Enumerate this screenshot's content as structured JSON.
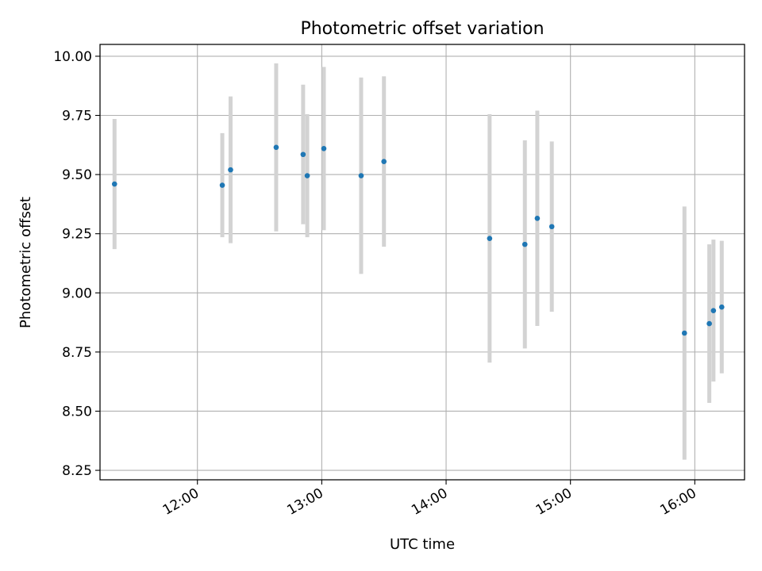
{
  "chart_data": {
    "type": "scatter",
    "title": "Photometric offset variation",
    "xlabel": "UTC time",
    "ylabel": "Photometric offset",
    "x_ticks": [
      "12:00",
      "13:00",
      "14:00",
      "15:00",
      "16:00"
    ],
    "y_ticks": [
      "8.25",
      "8.50",
      "8.75",
      "9.00",
      "9.25",
      "9.50",
      "9.75",
      "10.00"
    ],
    "xlim": [
      "11:13",
      "16:24"
    ],
    "ylim": [
      8.21,
      10.05
    ],
    "grid": true,
    "colors": {
      "marker": "#1f77b4",
      "errorbar": "#d3d3d3",
      "grid": "#b0b0b0"
    },
    "points": [
      {
        "x": "11:20",
        "y": 9.46,
        "yerr": 0.275
      },
      {
        "x": "12:12",
        "y": 9.455,
        "yerr": 0.22
      },
      {
        "x": "12:16",
        "y": 9.52,
        "yerr": 0.31
      },
      {
        "x": "12:38",
        "y": 9.615,
        "yerr": 0.355
      },
      {
        "x": "12:51",
        "y": 9.585,
        "yerr": 0.295
      },
      {
        "x": "12:53",
        "y": 9.495,
        "yerr": 0.26
      },
      {
        "x": "13:01",
        "y": 9.61,
        "yerr": 0.345
      },
      {
        "x": "13:19",
        "y": 9.495,
        "yerr": 0.415
      },
      {
        "x": "13:30",
        "y": 9.555,
        "yerr": 0.36
      },
      {
        "x": "14:21",
        "y": 9.23,
        "yerr": 0.525
      },
      {
        "x": "14:38",
        "y": 9.205,
        "yerr": 0.44
      },
      {
        "x": "14:44",
        "y": 9.315,
        "yerr": 0.455
      },
      {
        "x": "14:51",
        "y": 9.28,
        "yerr": 0.36
      },
      {
        "x": "15:55",
        "y": 8.83,
        "yerr": 0.535
      },
      {
        "x": "16:07",
        "y": 8.87,
        "yerr": 0.335
      },
      {
        "x": "16:09",
        "y": 8.925,
        "yerr": 0.3
      },
      {
        "x": "16:13",
        "y": 8.94,
        "yerr": 0.28
      }
    ]
  }
}
